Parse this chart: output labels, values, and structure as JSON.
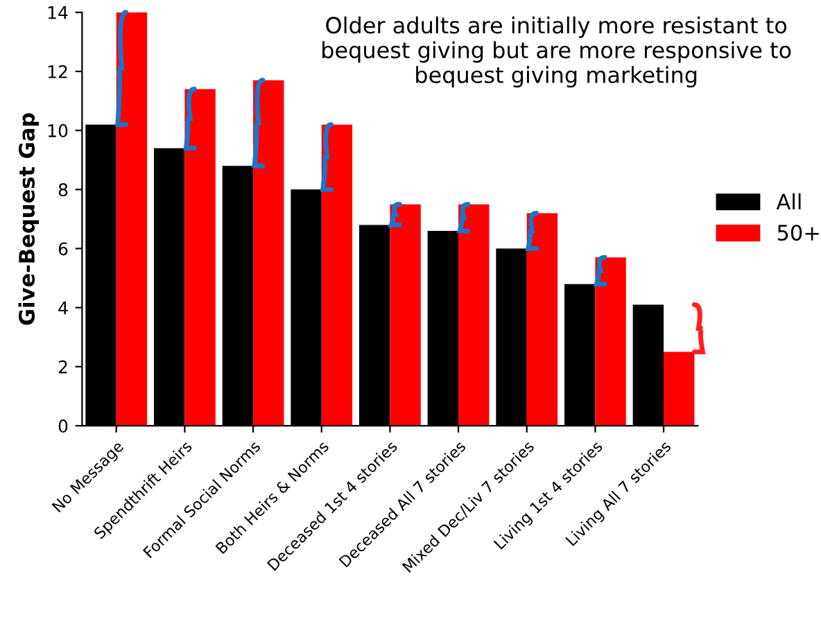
{
  "chart_data": {
    "type": "bar",
    "ylabel": "Give-Bequest Gap",
    "categories": [
      "No Message",
      "Spendthrift Heirs",
      "Formal Social Norms",
      "Both Heirs & Norms",
      "Deceased 1st 4 stories",
      "Deceased All 7 stories",
      "Mixed Dec/Liv 7 stories",
      "Living 1st 4 stories",
      "Living All 7 stories"
    ],
    "series": [
      {
        "name": "All",
        "color": "#000000",
        "values": [
          10.2,
          9.4,
          8.8,
          8.0,
          6.8,
          6.6,
          6.0,
          4.8,
          4.1
        ]
      },
      {
        "name": "50+",
        "color": "#ff0000",
        "values": [
          14.0,
          11.4,
          11.7,
          10.2,
          7.5,
          7.5,
          7.2,
          5.7,
          2.5
        ]
      }
    ],
    "ylim": [
      0,
      14
    ],
    "yticks": [
      0,
      2,
      4,
      6,
      8,
      10,
      12,
      14
    ],
    "grid": false,
    "legend": "right",
    "annotations": [
      "Older adults are initially more resistant to bequest giving but are more responsive to bequest giving marketing"
    ]
  }
}
